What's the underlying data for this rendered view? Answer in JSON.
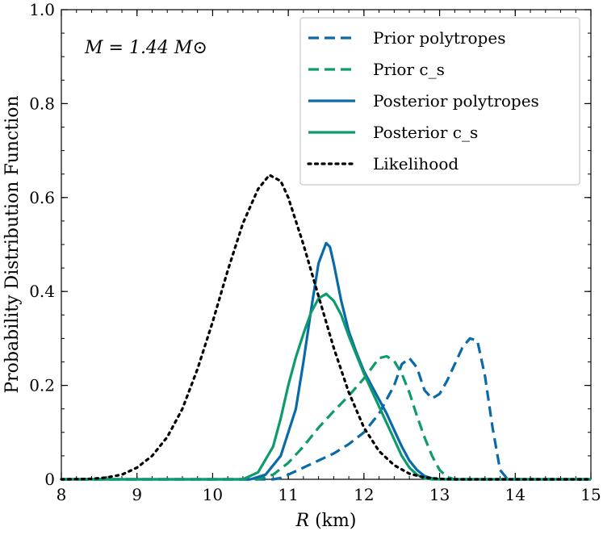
{
  "chart_data": {
    "type": "line",
    "title": "",
    "xlabel": "R (km)",
    "ylabel": "Probability Distribution Function",
    "xlim": [
      8,
      15
    ],
    "ylim": [
      0,
      1.0
    ],
    "x_ticks": [
      8,
      9,
      10,
      11,
      12,
      13,
      14,
      15
    ],
    "y_ticks": [
      0,
      0.2,
      0.4,
      0.6,
      0.8,
      1.0
    ],
    "y_tick_labels": [
      "0",
      "0.2",
      "0.4",
      "0.6",
      "0.8",
      "1.0"
    ],
    "annotation": "M = 1.44 M⊙",
    "legend_position": "top-right",
    "series": [
      {
        "name": "Prior polytropes",
        "style": "dashed",
        "color": "#0a6aa8",
        "points": [
          [
            8.0,
            0
          ],
          [
            10.8,
            0
          ],
          [
            10.9,
            0.003
          ],
          [
            11.0,
            0.01
          ],
          [
            11.2,
            0.025
          ],
          [
            11.4,
            0.04
          ],
          [
            11.6,
            0.055
          ],
          [
            11.8,
            0.075
          ],
          [
            12.0,
            0.1
          ],
          [
            12.2,
            0.14
          ],
          [
            12.4,
            0.2
          ],
          [
            12.5,
            0.245
          ],
          [
            12.6,
            0.258
          ],
          [
            12.7,
            0.238
          ],
          [
            12.8,
            0.19
          ],
          [
            12.9,
            0.172
          ],
          [
            13.0,
            0.182
          ],
          [
            13.1,
            0.21
          ],
          [
            13.2,
            0.245
          ],
          [
            13.3,
            0.28
          ],
          [
            13.4,
            0.3
          ],
          [
            13.5,
            0.295
          ],
          [
            13.6,
            0.22
          ],
          [
            13.7,
            0.11
          ],
          [
            13.8,
            0.02
          ],
          [
            13.9,
            0
          ],
          [
            15.0,
            0
          ]
        ]
      },
      {
        "name": "Prior c_s",
        "style": "dashed",
        "color": "#0f9a6e",
        "points": [
          [
            8.0,
            0
          ],
          [
            10.6,
            0
          ],
          [
            10.8,
            0.01
          ],
          [
            11.0,
            0.035
          ],
          [
            11.2,
            0.07
          ],
          [
            11.4,
            0.11
          ],
          [
            11.6,
            0.145
          ],
          [
            11.8,
            0.178
          ],
          [
            12.0,
            0.215
          ],
          [
            12.2,
            0.258
          ],
          [
            12.3,
            0.262
          ],
          [
            12.4,
            0.252
          ],
          [
            12.5,
            0.225
          ],
          [
            12.6,
            0.185
          ],
          [
            12.7,
            0.135
          ],
          [
            12.8,
            0.09
          ],
          [
            12.9,
            0.05
          ],
          [
            13.0,
            0.02
          ],
          [
            13.1,
            0.005
          ],
          [
            13.2,
            0
          ],
          [
            15.0,
            0
          ]
        ]
      },
      {
        "name": "Posterior polytropes",
        "style": "solid",
        "color": "#0a6aa8",
        "points": [
          [
            8.0,
            0
          ],
          [
            10.5,
            0
          ],
          [
            10.7,
            0.01
          ],
          [
            10.9,
            0.05
          ],
          [
            11.1,
            0.15
          ],
          [
            11.2,
            0.25
          ],
          [
            11.3,
            0.36
          ],
          [
            11.4,
            0.46
          ],
          [
            11.5,
            0.503
          ],
          [
            11.55,
            0.495
          ],
          [
            11.6,
            0.46
          ],
          [
            11.7,
            0.38
          ],
          [
            11.8,
            0.315
          ],
          [
            11.9,
            0.27
          ],
          [
            12.0,
            0.23
          ],
          [
            12.1,
            0.2
          ],
          [
            12.2,
            0.17
          ],
          [
            12.3,
            0.14
          ],
          [
            12.4,
            0.105
          ],
          [
            12.5,
            0.07
          ],
          [
            12.6,
            0.04
          ],
          [
            12.7,
            0.02
          ],
          [
            12.8,
            0.007
          ],
          [
            12.9,
            0.002
          ],
          [
            13.0,
            0
          ],
          [
            15.0,
            0
          ]
        ]
      },
      {
        "name": "Posterior c_s",
        "style": "solid",
        "color": "#0f9a6e",
        "points": [
          [
            8.0,
            0
          ],
          [
            10.4,
            0
          ],
          [
            10.6,
            0.015
          ],
          [
            10.8,
            0.07
          ],
          [
            10.9,
            0.13
          ],
          [
            11.0,
            0.2
          ],
          [
            11.1,
            0.26
          ],
          [
            11.2,
            0.31
          ],
          [
            11.3,
            0.355
          ],
          [
            11.4,
            0.385
          ],
          [
            11.5,
            0.395
          ],
          [
            11.6,
            0.38
          ],
          [
            11.7,
            0.35
          ],
          [
            11.8,
            0.305
          ],
          [
            11.9,
            0.265
          ],
          [
            12.0,
            0.225
          ],
          [
            12.1,
            0.19
          ],
          [
            12.2,
            0.155
          ],
          [
            12.3,
            0.12
          ],
          [
            12.4,
            0.085
          ],
          [
            12.5,
            0.05
          ],
          [
            12.6,
            0.025
          ],
          [
            12.7,
            0.01
          ],
          [
            12.8,
            0.002
          ],
          [
            12.9,
            0
          ],
          [
            15.0,
            0
          ]
        ]
      },
      {
        "name": "Likelihood",
        "style": "dotted",
        "color": "#000000",
        "points": [
          [
            8.0,
            0
          ],
          [
            8.4,
            0.001
          ],
          [
            8.6,
            0.004
          ],
          [
            8.8,
            0.01
          ],
          [
            9.0,
            0.025
          ],
          [
            9.2,
            0.05
          ],
          [
            9.4,
            0.09
          ],
          [
            9.6,
            0.15
          ],
          [
            9.8,
            0.235
          ],
          [
            10.0,
            0.335
          ],
          [
            10.2,
            0.445
          ],
          [
            10.4,
            0.545
          ],
          [
            10.6,
            0.618
          ],
          [
            10.75,
            0.648
          ],
          [
            10.9,
            0.635
          ],
          [
            11.0,
            0.6
          ],
          [
            11.2,
            0.5
          ],
          [
            11.4,
            0.39
          ],
          [
            11.6,
            0.28
          ],
          [
            11.8,
            0.185
          ],
          [
            12.0,
            0.11
          ],
          [
            12.2,
            0.06
          ],
          [
            12.4,
            0.03
          ],
          [
            12.6,
            0.012
          ],
          [
            12.8,
            0.004
          ],
          [
            13.0,
            0.001
          ],
          [
            13.2,
            0
          ],
          [
            15.0,
            0
          ]
        ]
      }
    ]
  }
}
